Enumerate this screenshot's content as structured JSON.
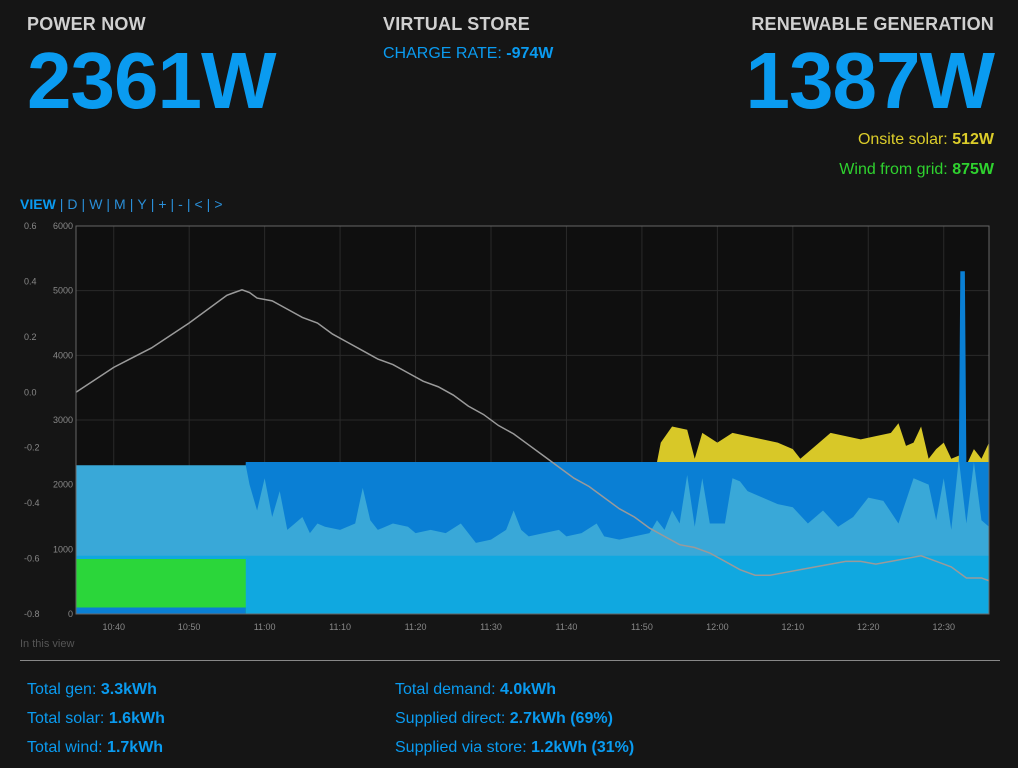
{
  "power": {
    "label": "POWER NOW",
    "value": "2361W"
  },
  "store": {
    "label": "VIRTUAL STORE",
    "rate_label": "CHARGE RATE:",
    "rate_value": "-974W"
  },
  "generation": {
    "label": "RENEWABLE GENERATION",
    "value": "1387W",
    "solar_label": "Onsite solar:",
    "solar_value": "512W",
    "wind_label": "Wind from grid:",
    "wind_value": "875W"
  },
  "nav": {
    "view_label": "VIEW",
    "items": [
      "D",
      "W",
      "M",
      "Y",
      "+",
      "-",
      "<",
      ">"
    ]
  },
  "chart_data": {
    "type": "area",
    "left_axis": {
      "ticks": [
        "0.6",
        "0.4",
        "0.2",
        "0.0",
        "-0.2",
        "-0.4",
        "-0.6",
        "-0.8"
      ],
      "ylim": [
        -0.8,
        0.6
      ]
    },
    "right_axis": {
      "ticks": [
        "6000",
        "5000",
        "4000",
        "3000",
        "2000",
        "1000",
        "0"
      ],
      "ylim": [
        0,
        6000
      ]
    },
    "x_ticks": [
      "10:40",
      "10:50",
      "11:00",
      "11:10",
      "11:20",
      "11:30",
      "11:40",
      "11:50",
      "12:00",
      "12:10",
      "12:20",
      "12:30"
    ],
    "x_range_minutes": [
      35,
      156
    ],
    "grid": true,
    "series": [
      {
        "color": "#d8c828",
        "points": [
          [
            35,
            1500
          ],
          [
            36,
            1150
          ],
          [
            37,
            1450
          ],
          [
            38,
            1300
          ],
          [
            39,
            1700
          ],
          [
            40,
            1350
          ],
          [
            41,
            1550
          ],
          [
            42,
            1400
          ],
          [
            43,
            1300
          ],
          [
            44,
            1200
          ],
          [
            45,
            1150
          ],
          [
            46,
            1250
          ],
          [
            47,
            1200
          ],
          [
            48,
            1250
          ],
          [
            49,
            1450
          ],
          [
            50,
            1250
          ],
          [
            51,
            1300
          ],
          [
            52,
            1400
          ],
          [
            53,
            1600
          ],
          [
            54,
            1300
          ],
          [
            55,
            1300
          ],
          [
            56,
            1400
          ],
          [
            57,
            1350
          ],
          [
            57.5,
            1400
          ],
          [
            58,
            2350
          ],
          [
            70,
            2350
          ],
          [
            85,
            2350
          ],
          [
            100,
            2350
          ],
          [
            112,
            2350
          ],
          [
            112.5,
            2650
          ],
          [
            114,
            2900
          ],
          [
            116,
            2850
          ],
          [
            117,
            2400
          ],
          [
            118,
            2800
          ],
          [
            120,
            2650
          ],
          [
            122,
            2800
          ],
          [
            124,
            2750
          ],
          [
            126,
            2700
          ],
          [
            128,
            2650
          ],
          [
            130,
            2550
          ],
          [
            131,
            2400
          ],
          [
            133,
            2600
          ],
          [
            135,
            2800
          ],
          [
            137,
            2750
          ],
          [
            139,
            2700
          ],
          [
            141,
            2750
          ],
          [
            143,
            2800
          ],
          [
            144,
            2950
          ],
          [
            145,
            2600
          ],
          [
            146,
            2650
          ],
          [
            147,
            2900
          ],
          [
            148,
            2400
          ],
          [
            149,
            2550
          ],
          [
            150,
            2650
          ],
          [
            151,
            2400
          ],
          [
            152,
            2450
          ],
          [
            153,
            2300
          ],
          [
            154,
            2550
          ],
          [
            155,
            2400
          ],
          [
            156,
            2650
          ]
        ]
      },
      {
        "color": "#0a7fd4",
        "points": [
          [
            35,
            1000
          ],
          [
            57,
            1000
          ],
          [
            57.5,
            2350
          ],
          [
            60,
            2350
          ],
          [
            75,
            2350
          ],
          [
            90,
            2350
          ],
          [
            105,
            2350
          ],
          [
            112,
            2350
          ],
          [
            116,
            2350
          ],
          [
            135,
            2350
          ],
          [
            150,
            2350
          ],
          [
            152,
            2350
          ],
          [
            152.2,
            5300
          ],
          [
            152.8,
            5300
          ],
          [
            153,
            2350
          ],
          [
            156,
            2350
          ]
        ]
      },
      {
        "color": "#39a8d8",
        "points": [
          [
            35,
            2300
          ],
          [
            57.5,
            2300
          ],
          [
            58,
            2000
          ],
          [
            59,
            1600
          ],
          [
            60,
            2100
          ],
          [
            61,
            1500
          ],
          [
            62,
            1900
          ],
          [
            63,
            1300
          ],
          [
            64,
            1400
          ],
          [
            65,
            1500
          ],
          [
            66,
            1250
          ],
          [
            67,
            1400
          ],
          [
            68,
            1350
          ],
          [
            70,
            1300
          ],
          [
            72,
            1400
          ],
          [
            73,
            1950
          ],
          [
            74,
            1450
          ],
          [
            75,
            1300
          ],
          [
            77,
            1400
          ],
          [
            79,
            1350
          ],
          [
            80,
            1250
          ],
          [
            82,
            1300
          ],
          [
            84,
            1250
          ],
          [
            86,
            1400
          ],
          [
            88,
            1100
          ],
          [
            90,
            1150
          ],
          [
            92,
            1300
          ],
          [
            93,
            1600
          ],
          [
            94,
            1300
          ],
          [
            95,
            1200
          ],
          [
            97,
            1250
          ],
          [
            99,
            1300
          ],
          [
            100,
            1200
          ],
          [
            102,
            1250
          ],
          [
            104,
            1400
          ],
          [
            105,
            1200
          ],
          [
            107,
            1150
          ],
          [
            109,
            1200
          ],
          [
            111,
            1250
          ],
          [
            112,
            1450
          ],
          [
            113,
            1300
          ],
          [
            114,
            1600
          ],
          [
            115,
            1400
          ],
          [
            116,
            2150
          ],
          [
            117,
            1350
          ],
          [
            118,
            2100
          ],
          [
            119,
            1400
          ],
          [
            121,
            1400
          ],
          [
            122,
            2100
          ],
          [
            123,
            2050
          ],
          [
            124,
            1900
          ],
          [
            126,
            1800
          ],
          [
            128,
            1700
          ],
          [
            130,
            1650
          ],
          [
            132,
            1400
          ],
          [
            134,
            1600
          ],
          [
            136,
            1350
          ],
          [
            138,
            1500
          ],
          [
            140,
            1800
          ],
          [
            142,
            1750
          ],
          [
            144,
            1400
          ],
          [
            146,
            2100
          ],
          [
            148,
            2000
          ],
          [
            149,
            1450
          ],
          [
            150,
            2100
          ],
          [
            151,
            1300
          ],
          [
            152,
            2400
          ],
          [
            153,
            1400
          ],
          [
            154,
            2350
          ],
          [
            155,
            1450
          ],
          [
            156,
            1350
          ]
        ]
      },
      {
        "color": "#10a8e0",
        "points": [
          [
            35,
            900
          ],
          [
            156,
            900
          ]
        ]
      },
      {
        "color": "#2bd63a",
        "points": [
          [
            35,
            850
          ],
          [
            57.5,
            850
          ]
        ]
      },
      {
        "color": "#0a7fd4",
        "points": [
          [
            35,
            100
          ],
          [
            57.5,
            100
          ]
        ]
      },
      {
        "type": "line",
        "color": "#9a9a9a",
        "axis": "left",
        "points": [
          [
            35,
            0.0
          ],
          [
            40,
            0.09
          ],
          [
            45,
            0.16
          ],
          [
            50,
            0.25
          ],
          [
            55,
            0.35
          ],
          [
            56,
            0.36
          ],
          [
            57,
            0.37
          ],
          [
            58,
            0.36
          ],
          [
            59,
            0.34
          ],
          [
            61,
            0.33
          ],
          [
            63,
            0.3
          ],
          [
            65,
            0.27
          ],
          [
            67,
            0.25
          ],
          [
            69,
            0.21
          ],
          [
            71,
            0.18
          ],
          [
            73,
            0.15
          ],
          [
            75,
            0.12
          ],
          [
            77,
            0.1
          ],
          [
            79,
            0.07
          ],
          [
            81,
            0.04
          ],
          [
            83,
            0.02
          ],
          [
            85,
            -0.01
          ],
          [
            87,
            -0.05
          ],
          [
            89,
            -0.08
          ],
          [
            91,
            -0.12
          ],
          [
            93,
            -0.15
          ],
          [
            95,
            -0.19
          ],
          [
            97,
            -0.23
          ],
          [
            99,
            -0.27
          ],
          [
            101,
            -0.31
          ],
          [
            103,
            -0.34
          ],
          [
            105,
            -0.38
          ],
          [
            107,
            -0.42
          ],
          [
            109,
            -0.45
          ],
          [
            111,
            -0.49
          ],
          [
            113,
            -0.52
          ],
          [
            115,
            -0.55
          ],
          [
            117,
            -0.56
          ],
          [
            119,
            -0.58
          ],
          [
            121,
            -0.61
          ],
          [
            123,
            -0.64
          ],
          [
            125,
            -0.66
          ],
          [
            127,
            -0.66
          ],
          [
            129,
            -0.65
          ],
          [
            131,
            -0.64
          ],
          [
            133,
            -0.63
          ],
          [
            135,
            -0.62
          ],
          [
            137,
            -0.61
          ],
          [
            139,
            -0.61
          ],
          [
            141,
            -0.62
          ],
          [
            143,
            -0.61
          ],
          [
            145,
            -0.6
          ],
          [
            147,
            -0.59
          ],
          [
            149,
            -0.61
          ],
          [
            151,
            -0.63
          ],
          [
            153,
            -0.67
          ],
          [
            155,
            -0.67
          ],
          [
            156,
            -0.68
          ]
        ]
      }
    ]
  },
  "in_view_label": "In this view",
  "stats": {
    "left": [
      {
        "label": "Total gen:",
        "value": "3.3kWh"
      },
      {
        "label": "Total solar:",
        "value": "1.6kWh"
      },
      {
        "label": "Total wind:",
        "value": "1.7kWh"
      }
    ],
    "right": [
      {
        "label": "Total demand:",
        "value": "4.0kWh"
      },
      {
        "label": "Supplied direct:",
        "value": "2.7kWh (69%)"
      },
      {
        "label": "Supplied via store:",
        "value": "1.2kWh (31%)"
      }
    ]
  }
}
